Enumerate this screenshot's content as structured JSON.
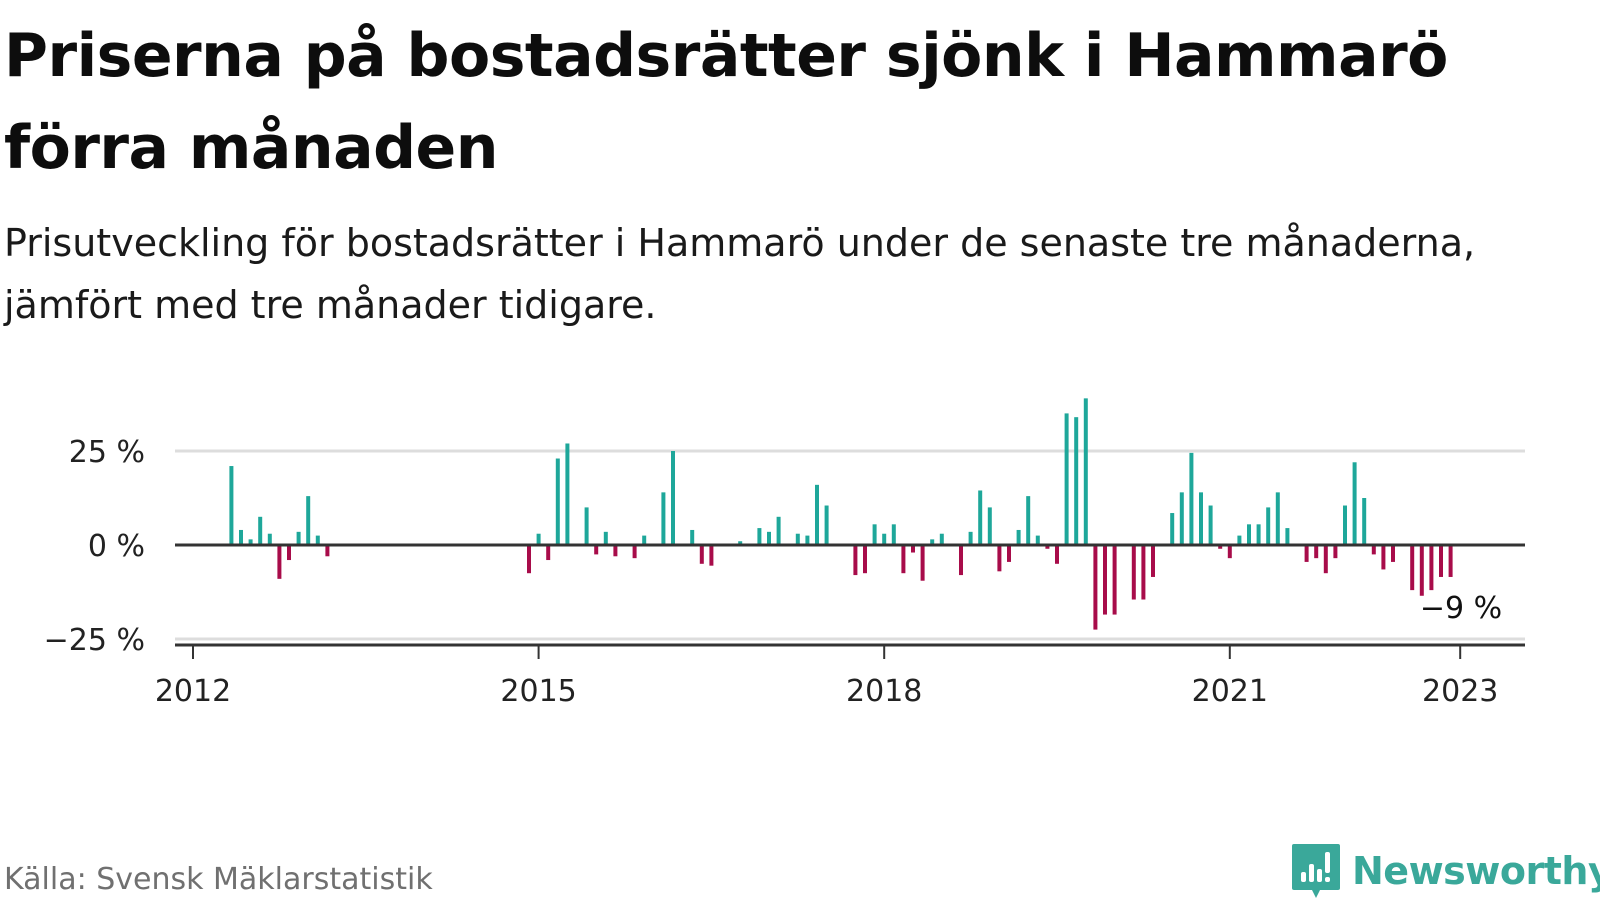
{
  "header": {
    "title": "Priserna på bostadsrätter sjönk i Hammarö förra månaden",
    "subtitle": "Prisutveckling för bostadsrätter i Hammarö under de senaste tre månaderna, jämfört med tre månader tidigare."
  },
  "footer": {
    "source": "Källa: Svensk Mäklarstatistik",
    "brand": "Newsworthy",
    "brand_icon": "bar-chart-speech-bubble-icon"
  },
  "colors": {
    "positive": "#1ea79a",
    "negative": "#a80c4a",
    "grid": "#dddddd",
    "axis": "#333333",
    "brand": "#3aa89a"
  },
  "chart_data": {
    "type": "bar",
    "title": "Priserna på bostadsrätter sjönk i Hammarö förra månaden",
    "subtitle": "Prisutveckling för bostadsrätter i Hammarö under de senaste tre månaderna, jämfört med tre månader tidigare.",
    "xlabel": "",
    "ylabel": "",
    "x_start": "2012-01",
    "x_end": "2023-08",
    "ylim": [
      -25,
      38
    ],
    "y_ticks": [
      25,
      0,
      -25
    ],
    "y_tick_labels": [
      "25 %",
      "0 %",
      "−25 %"
    ],
    "x_ticks": [
      "2012-01",
      "2015-01",
      "2018-01",
      "2021-01",
      "2023-01"
    ],
    "x_tick_labels": [
      "2012",
      "2015",
      "2018",
      "2021",
      "2023"
    ],
    "grid": true,
    "legend": "none",
    "annotation": {
      "month": "2023-01",
      "text": "−9 %"
    },
    "series": [
      {
        "values": [
          {
            "month": "2012-05",
            "value": 21
          },
          {
            "month": "2012-06",
            "value": 4
          },
          {
            "month": "2012-07",
            "value": 1.5
          },
          {
            "month": "2012-08",
            "value": 7.5
          },
          {
            "month": "2012-09",
            "value": 3
          },
          {
            "month": "2012-10",
            "value": -9
          },
          {
            "month": "2012-11",
            "value": -4
          },
          {
            "month": "2012-12",
            "value": 3.5
          },
          {
            "month": "2013-01",
            "value": 13
          },
          {
            "month": "2013-02",
            "value": 2.5
          },
          {
            "month": "2013-03",
            "value": -3
          },
          {
            "month": "2014-12",
            "value": -7.5
          },
          {
            "month": "2015-01",
            "value": 3
          },
          {
            "month": "2015-02",
            "value": -4
          },
          {
            "month": "2015-03",
            "value": 23
          },
          {
            "month": "2015-04",
            "value": 27
          },
          {
            "month": "2015-06",
            "value": 10
          },
          {
            "month": "2015-07",
            "value": -2.5
          },
          {
            "month": "2015-08",
            "value": 3.5
          },
          {
            "month": "2015-09",
            "value": -3
          },
          {
            "month": "2015-11",
            "value": -3.5
          },
          {
            "month": "2015-12",
            "value": 2.5
          },
          {
            "month": "2016-02",
            "value": 14
          },
          {
            "month": "2016-03",
            "value": 25
          },
          {
            "month": "2016-05",
            "value": 4
          },
          {
            "month": "2016-06",
            "value": -5
          },
          {
            "month": "2016-07",
            "value": -5.5
          },
          {
            "month": "2016-10",
            "value": 1
          },
          {
            "month": "2016-12",
            "value": 4.5
          },
          {
            "month": "2017-01",
            "value": 3.5
          },
          {
            "month": "2017-02",
            "value": 7.5
          },
          {
            "month": "2017-04",
            "value": 3
          },
          {
            "month": "2017-05",
            "value": 2.5
          },
          {
            "month": "2017-06",
            "value": 16
          },
          {
            "month": "2017-07",
            "value": 10.5
          },
          {
            "month": "2017-10",
            "value": -8
          },
          {
            "month": "2017-11",
            "value": -7.5
          },
          {
            "month": "2017-12",
            "value": 5.5
          },
          {
            "month": "2018-01",
            "value": 3
          },
          {
            "month": "2018-02",
            "value": 5.5
          },
          {
            "month": "2018-03",
            "value": -7.5
          },
          {
            "month": "2018-04",
            "value": -2
          },
          {
            "month": "2018-05",
            "value": -9.5
          },
          {
            "month": "2018-06",
            "value": 1.5
          },
          {
            "month": "2018-07",
            "value": 3
          },
          {
            "month": "2018-09",
            "value": -8
          },
          {
            "month": "2018-10",
            "value": 3.5
          },
          {
            "month": "2018-11",
            "value": 14.5
          },
          {
            "month": "2018-12",
            "value": 10
          },
          {
            "month": "2019-01",
            "value": -7
          },
          {
            "month": "2019-02",
            "value": -4.5
          },
          {
            "month": "2019-03",
            "value": 4
          },
          {
            "month": "2019-04",
            "value": 13
          },
          {
            "month": "2019-05",
            "value": 2.5
          },
          {
            "month": "2019-06",
            "value": -1
          },
          {
            "month": "2019-07",
            "value": -5
          },
          {
            "month": "2019-08",
            "value": 35
          },
          {
            "month": "2019-09",
            "value": 34
          },
          {
            "month": "2019-10",
            "value": 39
          },
          {
            "month": "2019-11",
            "value": -22.5
          },
          {
            "month": "2019-12",
            "value": -18.5
          },
          {
            "month": "2020-01",
            "value": -18.5
          },
          {
            "month": "2020-03",
            "value": -14.5
          },
          {
            "month": "2020-04",
            "value": -14.5
          },
          {
            "month": "2020-05",
            "value": -8.5
          },
          {
            "month": "2020-07",
            "value": 8.5
          },
          {
            "month": "2020-08",
            "value": 14
          },
          {
            "month": "2020-09",
            "value": 24.5
          },
          {
            "month": "2020-10",
            "value": 14
          },
          {
            "month": "2020-11",
            "value": 10.5
          },
          {
            "month": "2020-12",
            "value": -1
          },
          {
            "month": "2021-01",
            "value": -3.5
          },
          {
            "month": "2021-02",
            "value": 2.5
          },
          {
            "month": "2021-03",
            "value": 5.5
          },
          {
            "month": "2021-04",
            "value": 5.5
          },
          {
            "month": "2021-05",
            "value": 10
          },
          {
            "month": "2021-06",
            "value": 14
          },
          {
            "month": "2021-07",
            "value": 4.5
          },
          {
            "month": "2021-09",
            "value": -4.5
          },
          {
            "month": "2021-10",
            "value": -3.5
          },
          {
            "month": "2021-11",
            "value": -7.5
          },
          {
            "month": "2021-12",
            "value": -3.5
          },
          {
            "month": "2022-01",
            "value": 10.5
          },
          {
            "month": "2022-02",
            "value": 22
          },
          {
            "month": "2022-03",
            "value": 12.5
          },
          {
            "month": "2022-04",
            "value": -2.5
          },
          {
            "month": "2022-05",
            "value": -6.5
          },
          {
            "month": "2022-06",
            "value": -4.5
          },
          {
            "month": "2022-08",
            "value": -12
          },
          {
            "month": "2022-09",
            "value": -13.5
          },
          {
            "month": "2022-10",
            "value": -12
          },
          {
            "month": "2022-11",
            "value": -8.5
          },
          {
            "month": "2022-12",
            "value": -8.5
          }
        ]
      }
    ]
  }
}
